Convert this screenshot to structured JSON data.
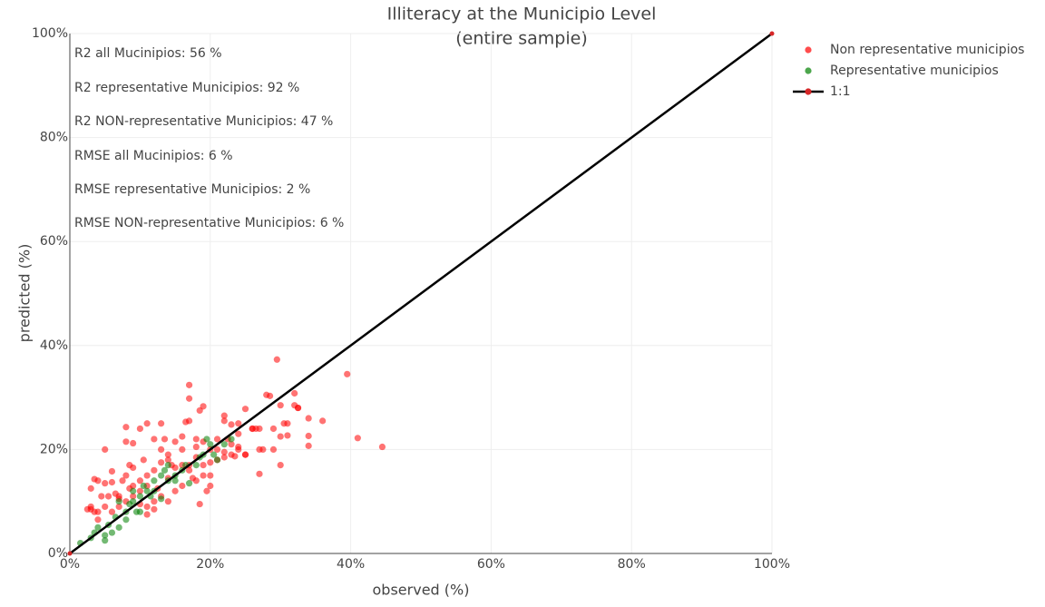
{
  "chart_data": {
    "type": "scatter",
    "title": "Illiteracy at the Municipio Level",
    "subtitle": "(entire sample)",
    "x_label": "observed (%)",
    "y_label": "predicted (%)",
    "annotations": [
      "R2 all Mucinipios: 56 %",
      "R2 representative Municipios: 92 %",
      "R2 NON-representative Municipios: 47 %",
      "RMSE all Mucinipios: 6 %",
      "RMSE representative Municipios: 2 %",
      "RMSE NON-representative Municipios: 6 %"
    ],
    "xlim": [
      0,
      100
    ],
    "ylim": [
      0,
      100
    ],
    "xticks": [
      {
        "value": 0,
        "label": "0%"
      },
      {
        "value": 20,
        "label": "20%"
      },
      {
        "value": 40,
        "label": "40%"
      },
      {
        "value": 60,
        "label": "60%"
      },
      {
        "value": 80,
        "label": "80%"
      },
      {
        "value": 100,
        "label": "100%"
      }
    ],
    "yticks": [
      {
        "value": 0,
        "label": "0%"
      },
      {
        "value": 20,
        "label": "20%"
      },
      {
        "value": 40,
        "label": "40%"
      },
      {
        "value": 60,
        "label": "60%"
      },
      {
        "value": 80,
        "label": "80%"
      },
      {
        "value": 100,
        "label": "100%"
      }
    ],
    "grid": true,
    "legend": "top-right-outside",
    "series": [
      {
        "name": "Non representative municipios",
        "color": "#ff0000",
        "mode": "markers",
        "x": [
          3,
          3.5,
          3,
          4,
          5,
          5,
          6,
          7,
          8,
          8,
          8.5,
          9,
          10,
          11,
          10.5,
          12,
          13,
          13.5,
          14,
          15,
          16,
          16.5,
          17,
          17,
          17,
          18,
          18.5,
          19,
          20,
          21,
          22,
          22,
          23,
          24,
          25,
          24,
          26,
          27,
          27,
          28,
          28.5,
          29.5,
          30,
          30.5,
          31,
          31,
          32,
          32,
          32.5,
          34,
          34,
          34,
          36,
          39.5,
          41,
          44.5,
          30,
          27,
          25,
          24,
          23,
          22,
          21,
          20,
          19,
          18,
          17,
          16,
          15,
          14,
          13,
          12,
          11,
          10,
          9,
          8,
          7,
          6,
          5,
          4,
          2.5,
          3,
          4.5,
          6,
          7,
          8,
          9,
          10,
          11,
          12,
          13,
          14,
          15,
          16,
          17,
          18,
          19,
          20,
          21,
          22,
          23,
          24,
          26,
          27.5,
          29,
          30,
          18.5,
          19.5,
          20,
          17.5,
          14,
          12,
          11,
          9,
          10,
          8.5,
          6.5,
          3.5,
          4,
          5.5,
          7.5,
          13,
          14.5,
          11,
          12.5,
          16,
          18,
          19,
          22.5,
          23.5,
          25,
          26.5,
          29,
          32.5
        ],
        "values": [
          8.5,
          14.3,
          12.5,
          8,
          20,
          13.5,
          15.8,
          11,
          24.3,
          21.5,
          17,
          21.2,
          24,
          25,
          18,
          22,
          25,
          22,
          19,
          21.5,
          22.5,
          25.3,
          29.8,
          32.4,
          25.5,
          22,
          27.5,
          28.3,
          20,
          22,
          25.5,
          26.5,
          24.8,
          25,
          27.8,
          23,
          24,
          24,
          20,
          30.5,
          30.3,
          37.3,
          28.5,
          25,
          25,
          22.7,
          30.8,
          28.5,
          28,
          26,
          22.6,
          20.7,
          25.5,
          34.5,
          22.2,
          20.5,
          17,
          15.3,
          19,
          20,
          19,
          18.5,
          20,
          17.5,
          15,
          14,
          17,
          13,
          12,
          14.5,
          11,
          10,
          9,
          12,
          13,
          10,
          9,
          8,
          9,
          6.5,
          8.5,
          9,
          11,
          13.7,
          10.5,
          15,
          16.5,
          14,
          15,
          16,
          17.5,
          18,
          16.5,
          17,
          16,
          18.5,
          17,
          15,
          18,
          19.5,
          21,
          20.5,
          24,
          20,
          20,
          22.5,
          9.5,
          12,
          13,
          14.5,
          10,
          8.5,
          7.5,
          11,
          9.5,
          12.5,
          11.5,
          8,
          14,
          11,
          14,
          20,
          17,
          13,
          12.5,
          20,
          20.5,
          21.5,
          22,
          18.7,
          19,
          24,
          24,
          28
        ]
      },
      {
        "name": "Representative municipios",
        "color": "#008000",
        "mode": "markers",
        "x": [
          1.5,
          3,
          3.5,
          4,
          5,
          5,
          5.5,
          6,
          7,
          6.5,
          7,
          8,
          8.5,
          9,
          9,
          10,
          10,
          11,
          11.5,
          12,
          13,
          13,
          14,
          14,
          15,
          16,
          16.5,
          17,
          18,
          19,
          19.5,
          20,
          21,
          22,
          23,
          10.5,
          12,
          8,
          9.5,
          13.5,
          15,
          18.5,
          20.5
        ],
        "values": [
          2,
          3,
          4,
          5,
          2.5,
          3.5,
          5.5,
          4,
          5,
          7,
          10,
          8,
          9.5,
          10,
          12,
          8,
          11,
          12,
          11,
          12,
          15,
          10.5,
          14,
          17,
          15,
          16,
          17,
          13.5,
          17,
          19,
          22,
          21,
          18,
          21,
          22,
          13,
          14,
          6.5,
          8,
          16,
          14,
          18.5,
          19
        ]
      },
      {
        "name": "1:1",
        "color": "#000000",
        "marker_color": "#d62728",
        "mode": "lines+markers",
        "x": [
          0,
          100
        ],
        "values": [
          0,
          100
        ]
      }
    ]
  }
}
